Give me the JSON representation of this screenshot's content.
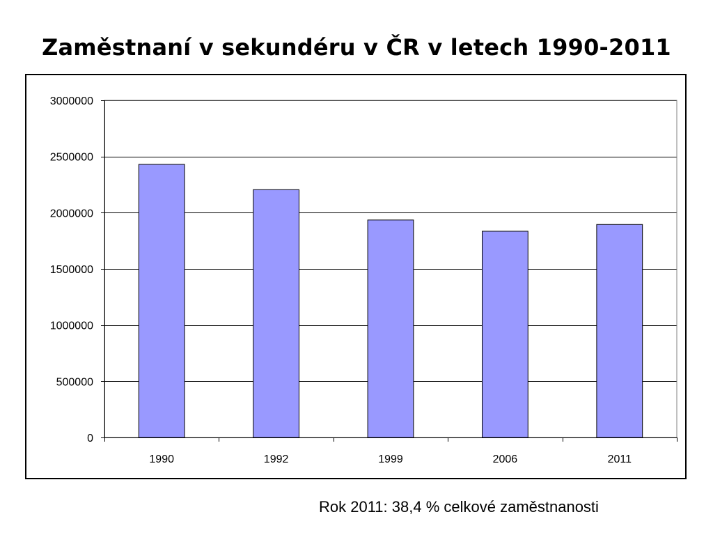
{
  "slide": {
    "title": "Zaměstnaní v sekundéru v ČR v letech 1990-2011",
    "footnote": "Rok 2011: 38,4 % celkové zaměstnanosti"
  },
  "chart_data": {
    "type": "bar",
    "categories": [
      "1990",
      "1992",
      "1999",
      "2006",
      "2011"
    ],
    "values": [
      2430000,
      2205000,
      1935000,
      1835000,
      1895000
    ],
    "ylim": [
      0,
      3000000
    ],
    "yticks": [
      0,
      500000,
      1000000,
      1500000,
      2000000,
      2500000,
      3000000
    ],
    "ytick_labels": [
      "0",
      "500000",
      "1000000",
      "1500000",
      "2000000",
      "2500000",
      "3000000"
    ],
    "grid": true,
    "legend": false,
    "bar_color": "#9999ff",
    "bar_border_color": "#000000",
    "grid_color": "#000000",
    "plot_border_color": "#808080"
  }
}
